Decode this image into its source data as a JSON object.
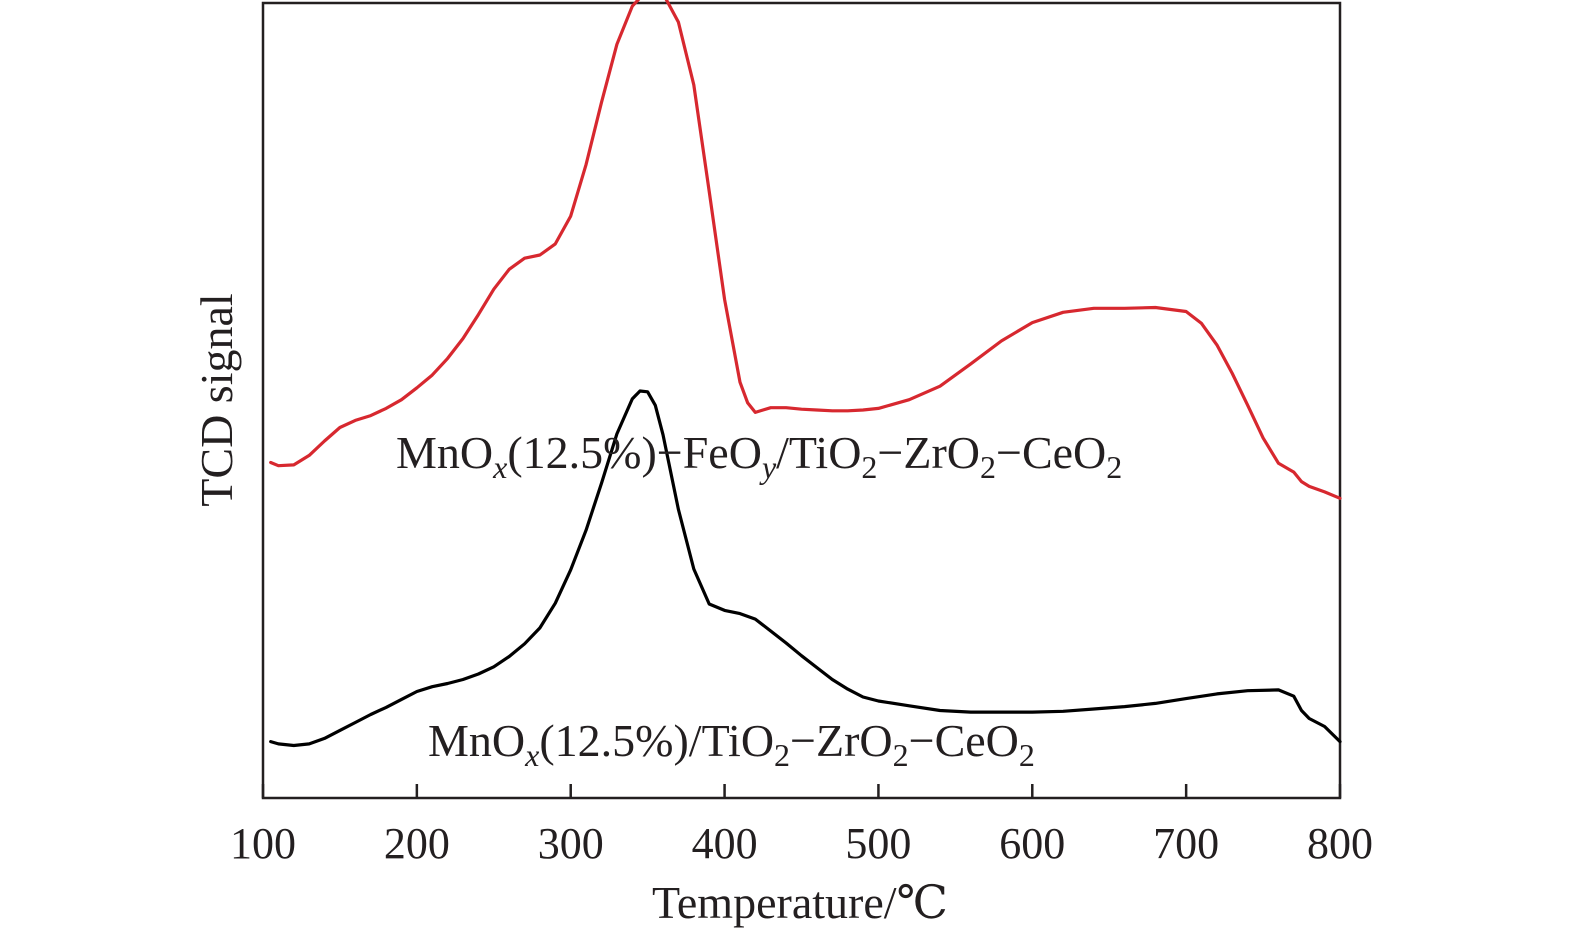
{
  "chart_data": {
    "type": "line",
    "xlabel": "Temperature/℃",
    "ylabel": "TCD signal",
    "xlim": [
      100,
      800
    ],
    "ylim": [
      0,
      100
    ],
    "xticks": [
      100,
      200,
      300,
      400,
      500,
      600,
      700,
      800
    ],
    "y_tick_labels": false,
    "grid": false,
    "legend": "none (series labeled inline)",
    "series": [
      {
        "name": "MnOx(12.5%)−FeOy/TiO2−ZrO2−CeO2",
        "label_parts": [
          {
            "t": "MnO"
          },
          {
            "t": "x",
            "style": "ital"
          },
          {
            "t": "(12.5%)−FeO"
          },
          {
            "t": "y",
            "style": "ital"
          },
          {
            "t": "/TiO"
          },
          {
            "t": "2",
            "style": "sub"
          },
          {
            "t": "−ZrO"
          },
          {
            "t": "2",
            "style": "sub"
          },
          {
            "t": "−CeO"
          },
          {
            "t": "2",
            "style": "sub"
          }
        ],
        "color": "#d7282f",
        "x": [
          105,
          110,
          120,
          130,
          140,
          150,
          160,
          170,
          180,
          190,
          200,
          210,
          220,
          230,
          240,
          250,
          260,
          270,
          280,
          290,
          300,
          310,
          320,
          330,
          340,
          350,
          360,
          370,
          380,
          390,
          400,
          410,
          415,
          420,
          425,
          430,
          440,
          450,
          460,
          470,
          480,
          490,
          500,
          520,
          540,
          560,
          580,
          600,
          620,
          640,
          660,
          680,
          700,
          710,
          720,
          730,
          740,
          750,
          760,
          770,
          775,
          780,
          790,
          800
        ],
        "y": [
          42.2,
          41.8,
          41.9,
          43.1,
          44.9,
          46.6,
          47.5,
          48.1,
          49.0,
          50.1,
          51.6,
          53.2,
          55.3,
          57.8,
          60.8,
          64.0,
          66.5,
          67.9,
          68.3,
          69.7,
          73.2,
          79.7,
          87.5,
          94.8,
          99.6,
          101.7,
          101.2,
          97.6,
          89.7,
          76.3,
          62.7,
          52.3,
          49.7,
          48.5,
          48.8,
          49.1,
          49.1,
          48.9,
          48.8,
          48.7,
          48.7,
          48.8,
          49.0,
          50.1,
          51.8,
          54.6,
          57.5,
          59.8,
          61.1,
          61.6,
          61.6,
          61.7,
          61.2,
          59.7,
          57.0,
          53.4,
          49.4,
          45.3,
          42.1,
          41.0,
          39.8,
          39.2,
          38.5,
          37.7
        ]
      },
      {
        "name": "MnOx(12.5%)/TiO2−ZrO2−CeO2",
        "label_parts": [
          {
            "t": "MnO"
          },
          {
            "t": "x",
            "style": "ital"
          },
          {
            "t": "(12.5%)/TiO"
          },
          {
            "t": "2",
            "style": "sub"
          },
          {
            "t": "−ZrO"
          },
          {
            "t": "2",
            "style": "sub"
          },
          {
            "t": "−CeO"
          },
          {
            "t": "2",
            "style": "sub"
          }
        ],
        "color": "#000000",
        "x": [
          105,
          110,
          120,
          130,
          140,
          150,
          160,
          170,
          180,
          190,
          200,
          210,
          220,
          230,
          240,
          250,
          260,
          270,
          280,
          290,
          300,
          310,
          320,
          330,
          340,
          345,
          350,
          355,
          360,
          370,
          380,
          390,
          400,
          410,
          420,
          430,
          440,
          450,
          460,
          470,
          480,
          490,
          500,
          520,
          540,
          560,
          580,
          600,
          620,
          640,
          660,
          680,
          700,
          720,
          740,
          760,
          770,
          775,
          780,
          790,
          800
        ],
        "y": [
          7.1,
          6.8,
          6.6,
          6.8,
          7.5,
          8.5,
          9.5,
          10.5,
          11.4,
          12.4,
          13.4,
          14.0,
          14.4,
          14.9,
          15.6,
          16.5,
          17.8,
          19.4,
          21.4,
          24.5,
          28.7,
          33.7,
          39.6,
          45.8,
          50.2,
          51.2,
          51.1,
          49.4,
          45.7,
          36.3,
          28.8,
          24.4,
          23.6,
          23.2,
          22.5,
          21.0,
          19.5,
          17.9,
          16.4,
          14.9,
          13.7,
          12.7,
          12.2,
          11.6,
          11.0,
          10.8,
          10.8,
          10.8,
          10.9,
          11.2,
          11.5,
          11.9,
          12.5,
          13.1,
          13.5,
          13.6,
          12.8,
          11.0,
          10.0,
          9.0,
          7.1
        ]
      }
    ]
  }
}
